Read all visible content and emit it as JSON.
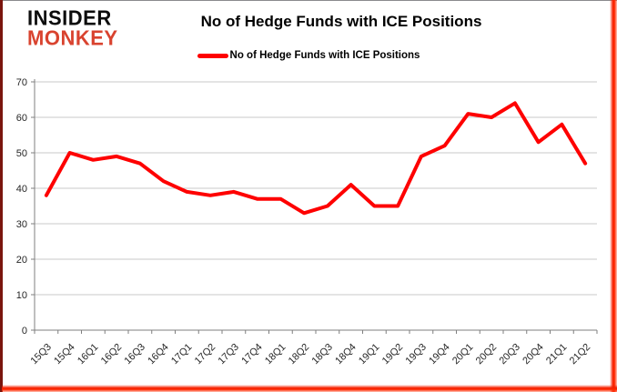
{
  "branding": {
    "logo_line1": "INSIDER",
    "logo_line2": "MONKEY",
    "logo_color": "#d9432f"
  },
  "title": "No of Hedge Funds with ICE Positions",
  "legend": {
    "label": "No of Hedge Funds with ICE Positions",
    "color": "#fe0000"
  },
  "colors": {
    "line": "#fe0000",
    "grid": "#c9c9c9",
    "axis": "#7f7f7f",
    "tick_text": "#262626"
  },
  "chart_data": {
    "type": "line",
    "title": "No of Hedge Funds with ICE Positions",
    "categories": [
      "15Q3",
      "15Q4",
      "16Q1",
      "16Q2",
      "16Q3",
      "16Q4",
      "17Q1",
      "17Q2",
      "17Q3",
      "17Q4",
      "18Q1",
      "18Q2",
      "18Q3",
      "18Q4",
      "19Q1",
      "19Q2",
      "19Q3",
      "19Q4",
      "20Q1",
      "20Q2",
      "20Q3",
      "20Q4",
      "21Q1",
      "21Q2"
    ],
    "series": [
      {
        "name": "No of Hedge Funds with ICE Positions",
        "color": "#fe0000",
        "values": [
          38,
          50,
          48,
          49,
          47,
          42,
          39,
          38,
          39,
          37,
          37,
          33,
          35,
          41,
          35,
          35,
          49,
          52,
          61,
          60,
          64,
          53,
          58,
          47
        ]
      }
    ],
    "xlabel": "",
    "ylabel": "",
    "ylim": [
      0,
      70
    ],
    "ytick_step": 10,
    "grid": true,
    "legend_position": "top-center"
  }
}
